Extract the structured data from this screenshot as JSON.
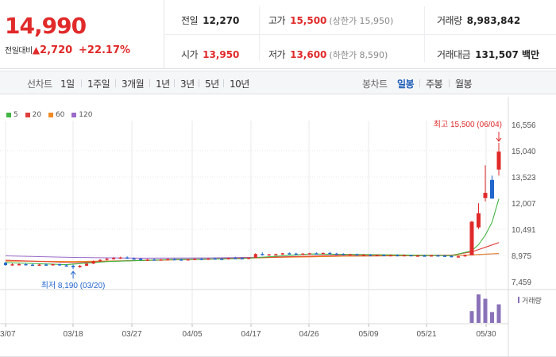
{
  "quote": {
    "price": "14,990",
    "diff_label": "전일대비",
    "diff_arrow": "▲",
    "diff_value": "2,720",
    "diff_rate": "+22.17%"
  },
  "stats": {
    "prev_label": "전일",
    "prev_value": "12,270",
    "high_label": "고가",
    "high_value": "15,500",
    "high_sub": "(상한가 15,950)",
    "volume_label": "거래량",
    "volume_value": "8,983,842",
    "open_label": "시가",
    "open_value": "13,950",
    "low_label": "저가",
    "low_value": "13,600",
    "low_sub": "(하한가 8,590)",
    "amount_label": "거래대금",
    "amount_value": "131,507 백만"
  },
  "toolbar": {
    "line_label": "선차트",
    "line_items": [
      "1일",
      "1주일",
      "3개월",
      "1년",
      "3년",
      "5년",
      "10년"
    ],
    "candle_label": "봉차트",
    "candle_items": [
      "일봉",
      "주봉",
      "월봉"
    ],
    "candle_active": "일봉"
  },
  "colors": {
    "up": "#e02a2a",
    "down": "#2266cc",
    "ma5": "#41b541",
    "ma20": "#e0403c",
    "ma60": "#f08a24",
    "ma120": "#9a6ac8",
    "volume": "#8a72b8",
    "grid": "#e8e8e8"
  },
  "chart_data": {
    "type": "candlestick",
    "legend": [
      {
        "name": "5",
        "color": "#41b541"
      },
      {
        "name": "20",
        "color": "#e0403c"
      },
      {
        "name": "60",
        "color": "#f08a24"
      },
      {
        "name": "120",
        "color": "#9a6ac8"
      }
    ],
    "ylim": [
      7459,
      16556
    ],
    "yticks": [
      "16,556",
      "15,040",
      "13,523",
      "12,007",
      "10,491",
      "8,975",
      "7,459"
    ],
    "xticks": [
      "03/07",
      "03/18",
      "03/27",
      "04/05",
      "04/17",
      "04/26",
      "05/09",
      "05/21",
      "05/30"
    ],
    "annotation_high": "최고 15,500 (06/04)",
    "annotation_low": "최저 8,190 (03/20)",
    "volume_label": "거래량",
    "candles": [
      {
        "o": 8550,
        "h": 8600,
        "l": 8380,
        "c": 8420
      },
      {
        "o": 8430,
        "h": 8520,
        "l": 8400,
        "c": 8460
      },
      {
        "o": 8460,
        "h": 8520,
        "l": 8410,
        "c": 8470
      },
      {
        "o": 8470,
        "h": 8540,
        "l": 8420,
        "c": 8440
      },
      {
        "o": 8440,
        "h": 8500,
        "l": 8400,
        "c": 8420
      },
      {
        "o": 8420,
        "h": 8480,
        "l": 8380,
        "c": 8450
      },
      {
        "o": 8450,
        "h": 8520,
        "l": 8400,
        "c": 8440
      },
      {
        "o": 8440,
        "h": 8500,
        "l": 8390,
        "c": 8470
      },
      {
        "o": 8470,
        "h": 8500,
        "l": 8380,
        "c": 8400
      },
      {
        "o": 8400,
        "h": 8460,
        "l": 8350,
        "c": 8380
      },
      {
        "o": 8380,
        "h": 8440,
        "l": 8190,
        "c": 8300
      },
      {
        "o": 8300,
        "h": 8420,
        "l": 8260,
        "c": 8380
      },
      {
        "o": 8380,
        "h": 8520,
        "l": 8360,
        "c": 8500
      },
      {
        "o": 8500,
        "h": 8680,
        "l": 8480,
        "c": 8640
      },
      {
        "o": 8640,
        "h": 8760,
        "l": 8600,
        "c": 8720
      },
      {
        "o": 8720,
        "h": 8820,
        "l": 8690,
        "c": 8790
      },
      {
        "o": 8790,
        "h": 8880,
        "l": 8740,
        "c": 8820
      },
      {
        "o": 8820,
        "h": 8900,
        "l": 8770,
        "c": 8860
      },
      {
        "o": 8860,
        "h": 8920,
        "l": 8780,
        "c": 8800
      },
      {
        "o": 8800,
        "h": 8860,
        "l": 8730,
        "c": 8780
      },
      {
        "o": 8780,
        "h": 8830,
        "l": 8690,
        "c": 8700
      },
      {
        "o": 8700,
        "h": 8780,
        "l": 8660,
        "c": 8740
      },
      {
        "o": 8740,
        "h": 8790,
        "l": 8680,
        "c": 8710
      },
      {
        "o": 8710,
        "h": 8770,
        "l": 8680,
        "c": 8740
      },
      {
        "o": 8740,
        "h": 8800,
        "l": 8700,
        "c": 8760
      },
      {
        "o": 8760,
        "h": 8810,
        "l": 8720,
        "c": 8740
      },
      {
        "o": 8740,
        "h": 8790,
        "l": 8690,
        "c": 8700
      },
      {
        "o": 8700,
        "h": 8770,
        "l": 8680,
        "c": 8750
      },
      {
        "o": 8750,
        "h": 8810,
        "l": 8720,
        "c": 8780
      },
      {
        "o": 8780,
        "h": 8820,
        "l": 8730,
        "c": 8750
      },
      {
        "o": 8750,
        "h": 8820,
        "l": 8720,
        "c": 8800
      },
      {
        "o": 8800,
        "h": 8860,
        "l": 8760,
        "c": 8780
      },
      {
        "o": 8780,
        "h": 8830,
        "l": 8740,
        "c": 8760
      },
      {
        "o": 8760,
        "h": 8850,
        "l": 8740,
        "c": 8830
      },
      {
        "o": 8830,
        "h": 8900,
        "l": 8790,
        "c": 8820
      },
      {
        "o": 8820,
        "h": 8870,
        "l": 8760,
        "c": 8780
      },
      {
        "o": 8780,
        "h": 8860,
        "l": 8760,
        "c": 8840
      },
      {
        "o": 8840,
        "h": 9100,
        "l": 8820,
        "c": 9060
      },
      {
        "o": 9060,
        "h": 9150,
        "l": 8980,
        "c": 9000
      },
      {
        "o": 9000,
        "h": 9060,
        "l": 8960,
        "c": 9040
      },
      {
        "o": 9040,
        "h": 9080,
        "l": 9000,
        "c": 9050
      },
      {
        "o": 9050,
        "h": 9120,
        "l": 9010,
        "c": 9100
      },
      {
        "o": 9100,
        "h": 9150,
        "l": 9040,
        "c": 9080
      },
      {
        "o": 9080,
        "h": 9130,
        "l": 9040,
        "c": 9060
      },
      {
        "o": 9060,
        "h": 9110,
        "l": 9030,
        "c": 9080
      },
      {
        "o": 9080,
        "h": 9130,
        "l": 9050,
        "c": 9100
      },
      {
        "o": 9100,
        "h": 9150,
        "l": 9060,
        "c": 9080
      },
      {
        "o": 9080,
        "h": 9140,
        "l": 9050,
        "c": 9120
      },
      {
        "o": 9120,
        "h": 9180,
        "l": 9060,
        "c": 9080
      },
      {
        "o": 9080,
        "h": 9130,
        "l": 9030,
        "c": 9050
      },
      {
        "o": 9050,
        "h": 9100,
        "l": 9000,
        "c": 9030
      },
      {
        "o": 9030,
        "h": 9070,
        "l": 8990,
        "c": 9040
      },
      {
        "o": 9040,
        "h": 9080,
        "l": 8990,
        "c": 9000
      },
      {
        "o": 9000,
        "h": 9060,
        "l": 8970,
        "c": 9010
      },
      {
        "o": 9010,
        "h": 9060,
        "l": 8960,
        "c": 8980
      },
      {
        "o": 8980,
        "h": 9030,
        "l": 8940,
        "c": 9000
      },
      {
        "o": 9000,
        "h": 9040,
        "l": 8950,
        "c": 8970
      },
      {
        "o": 8970,
        "h": 9030,
        "l": 8940,
        "c": 8990
      },
      {
        "o": 8990,
        "h": 9040,
        "l": 8950,
        "c": 8980
      },
      {
        "o": 8980,
        "h": 9030,
        "l": 8940,
        "c": 8990
      },
      {
        "o": 8990,
        "h": 9020,
        "l": 8940,
        "c": 8960
      },
      {
        "o": 8960,
        "h": 9010,
        "l": 8920,
        "c": 8970
      },
      {
        "o": 8970,
        "h": 9020,
        "l": 8920,
        "c": 8950
      },
      {
        "o": 8950,
        "h": 9000,
        "l": 8920,
        "c": 8980
      },
      {
        "o": 8980,
        "h": 9010,
        "l": 8930,
        "c": 8960
      },
      {
        "o": 8960,
        "h": 9000,
        "l": 8900,
        "c": 8940
      },
      {
        "o": 8940,
        "h": 8980,
        "l": 8870,
        "c": 8880
      },
      {
        "o": 8880,
        "h": 8960,
        "l": 8860,
        "c": 8920
      },
      {
        "o": 8920,
        "h": 9030,
        "l": 8900,
        "c": 8990
      },
      {
        "o": 8990,
        "h": 10980,
        "l": 8980,
        "c": 10930
      },
      {
        "o": 10600,
        "h": 12000,
        "l": 10500,
        "c": 11420
      },
      {
        "o": 12300,
        "h": 14200,
        "l": 12100,
        "c": 12600
      },
      {
        "o": 13350,
        "h": 13600,
        "l": 12250,
        "c": 12270
      },
      {
        "o": 13950,
        "h": 15500,
        "l": 13600,
        "c": 14990
      }
    ],
    "ma5": [
      [
        0,
        8560
      ],
      [
        9,
        8440
      ],
      [
        15,
        8620
      ],
      [
        25,
        8740
      ],
      [
        35,
        8790
      ],
      [
        45,
        9060
      ],
      [
        55,
        9020
      ],
      [
        66,
        8960
      ],
      [
        69,
        9250
      ],
      [
        70,
        9600
      ],
      [
        71,
        10150
      ],
      [
        72,
        10900
      ],
      [
        73,
        12250
      ]
    ],
    "ma20": [
      [
        0,
        8700
      ],
      [
        10,
        8560
      ],
      [
        20,
        8690
      ],
      [
        30,
        8760
      ],
      [
        40,
        8880
      ],
      [
        50,
        8990
      ],
      [
        60,
        8990
      ],
      [
        66,
        8990
      ],
      [
        69,
        9180
      ],
      [
        71,
        9450
      ],
      [
        73,
        9720
      ]
    ],
    "ma60": [
      [
        0,
        8650
      ],
      [
        10,
        8620
      ],
      [
        20,
        8680
      ],
      [
        30,
        8760
      ],
      [
        40,
        8860
      ],
      [
        50,
        8930
      ],
      [
        60,
        8960
      ],
      [
        68,
        8990
      ],
      [
        73,
        9090
      ]
    ],
    "ma120": [
      [
        0,
        8950
      ],
      [
        10,
        8860
      ],
      [
        20,
        8820
      ],
      [
        30,
        8830
      ],
      [
        40,
        8880
      ],
      [
        50,
        8930
      ],
      [
        60,
        8960
      ],
      [
        68,
        8990
      ],
      [
        73,
        9080
      ]
    ],
    "volume": [
      {
        "i": 69,
        "v": 0.38
      },
      {
        "i": 70,
        "v": 0.92
      },
      {
        "i": 71,
        "v": 0.78
      },
      {
        "i": 72,
        "v": 0.35
      },
      {
        "i": 73,
        "v": 0.6
      }
    ]
  }
}
